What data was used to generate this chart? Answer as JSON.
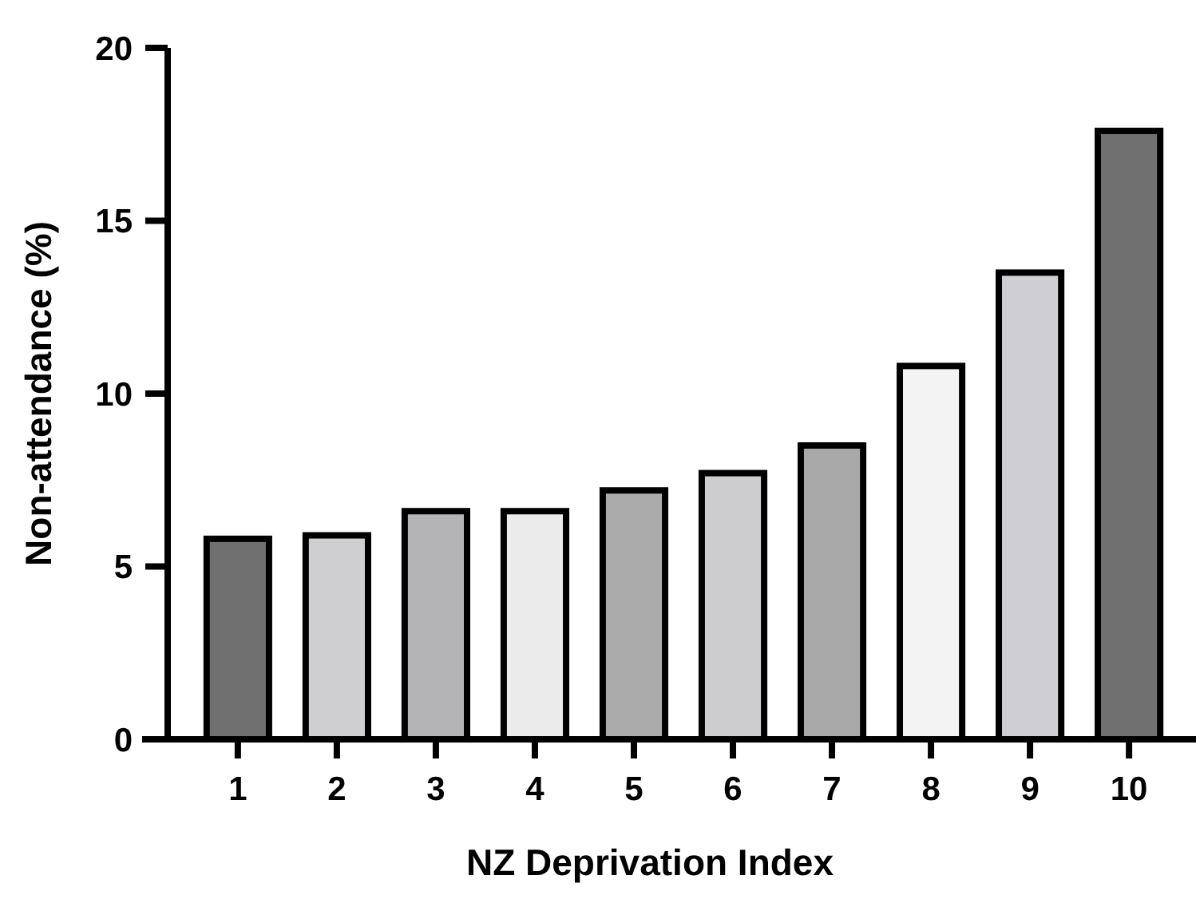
{
  "chart_data": {
    "type": "bar",
    "xlabel": "NZ Deprivation Index",
    "ylabel": "Non-attendance (%)",
    "categories": [
      "1",
      "2",
      "3",
      "4",
      "5",
      "6",
      "7",
      "8",
      "9",
      "10"
    ],
    "values": [
      5.8,
      5.9,
      6.6,
      6.6,
      7.2,
      7.7,
      8.5,
      10.8,
      13.5,
      17.6
    ],
    "colors": [
      "#707070",
      "#cfcfd2",
      "#b4b4b6",
      "#ebebeb",
      "#ababab",
      "#cdcdd0",
      "#a9a9a9",
      "#f3f3f3",
      "#cfcfd3",
      "#707070"
    ],
    "ylim": [
      0,
      20
    ],
    "yticks": [
      0,
      5,
      10,
      15,
      20
    ],
    "grid": false
  }
}
